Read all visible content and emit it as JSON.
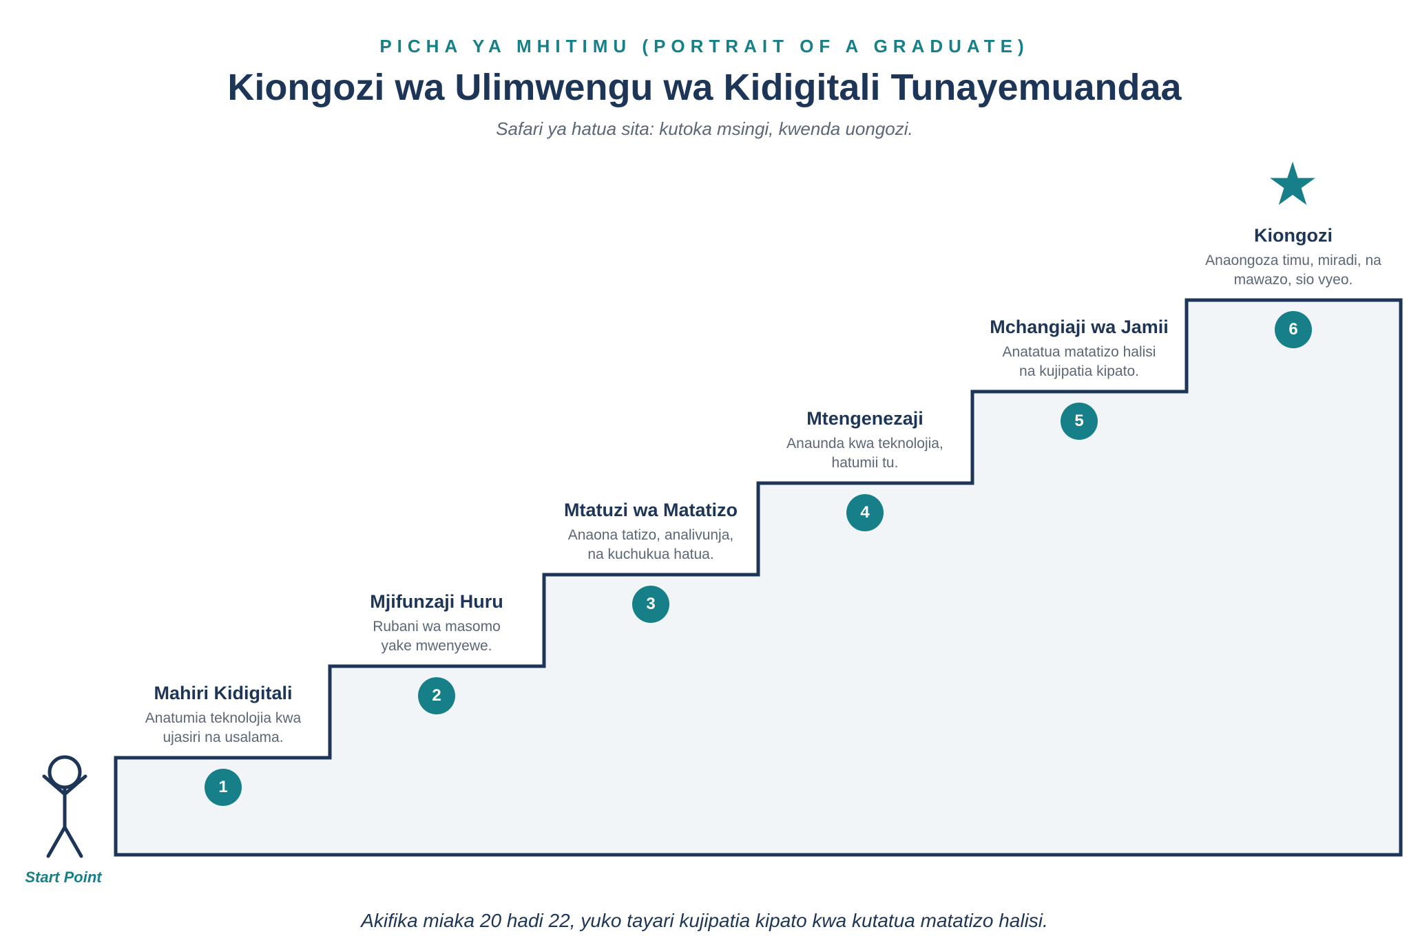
{
  "header": {
    "kicker": "PICHA YA MHITIMU (PORTRAIT OF A GRADUATE)",
    "title": "Kiongozi wa Ulimwengu wa Kidigitali Tunayemuandaa",
    "subtitle": "Safari ya hatua sita: kutoka msingi, kwenda uongozi."
  },
  "start_label": "Start Point",
  "steps": [
    {
      "number": "1",
      "title": "Mahiri Kidigitali",
      "line1": "Anatumia teknolojia kwa",
      "line2": "ujasiri na usalama."
    },
    {
      "number": "2",
      "title": "Mjifunzaji Huru",
      "line1": "Rubani wa masomo",
      "line2": "yake mwenyewe."
    },
    {
      "number": "3",
      "title": "Mtatuzi wa Matatizo",
      "line1": "Anaona tatizo, analivunja,",
      "line2": "na kuchukua hatua."
    },
    {
      "number": "4",
      "title": "Mtengenezaji",
      "line1": "Anaunda kwa teknolojia,",
      "line2": "hatumii tu."
    },
    {
      "number": "5",
      "title": "Mchangiaji wa Jamii",
      "line1": "Anatatua matatizo halisi",
      "line2": "na kujipatia kipato."
    },
    {
      "number": "6",
      "title": "Kiongozi",
      "line1": "Anaongoza timu, miradi, na",
      "line2": "mawazo, sio vyeo."
    }
  ],
  "footer": "Akifika miaka 20 hadi 22, yuko tayari kujipatia kipato kwa kutatua matatizo halisi.",
  "icons": {
    "summit": "star-icon",
    "start": "person-icon"
  },
  "colors": {
    "navy": "#1d3557",
    "teal": "#167f88",
    "stair_fill": "#f2f5f8",
    "muted": "#5b6777"
  }
}
